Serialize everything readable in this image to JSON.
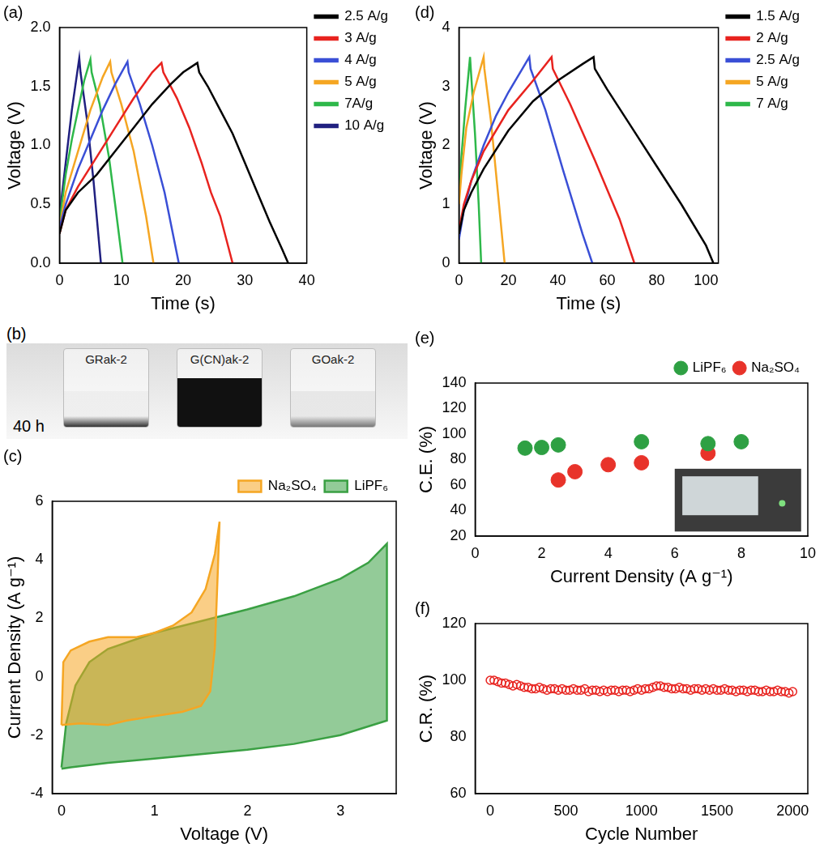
{
  "chart_data": [
    {
      "type": "line",
      "title": "(a)",
      "x_label": "Time (s)",
      "y_label": "Voltage (V)",
      "xlim": [
        0,
        40
      ],
      "xticks": [
        0,
        10,
        20,
        30,
        40
      ],
      "ylim": [
        0,
        2
      ],
      "yticks": [
        {
          "value": 0,
          "label": "0.0"
        },
        0.5,
        {
          "value": 1,
          "label": "1.0"
        },
        1.5,
        {
          "value": 2,
          "label": "2.0"
        }
      ],
      "grid": false,
      "legend": "right",
      "series": [
        {
          "name": "2.5 A/g",
          "color": "#000000",
          "x": [
            0,
            1,
            3,
            6,
            9,
            12,
            15,
            18,
            20,
            22.3,
            22.6,
            24,
            26,
            28,
            30,
            32,
            34,
            36,
            37
          ],
          "values": [
            0.25,
            0.45,
            0.6,
            0.75,
            0.95,
            1.15,
            1.35,
            1.52,
            1.62,
            1.7,
            1.62,
            1.5,
            1.3,
            1.1,
            0.85,
            0.6,
            0.35,
            0.12,
            0
          ]
        },
        {
          "name": "3 A/g",
          "color": "#e8231f",
          "x": [
            0,
            1,
            3,
            6,
            9,
            12,
            15,
            16.5,
            16.8,
            19,
            21,
            23,
            24.5,
            26,
            28
          ],
          "values": [
            0.25,
            0.45,
            0.65,
            0.9,
            1.15,
            1.4,
            1.62,
            1.7,
            1.62,
            1.4,
            1.15,
            0.85,
            0.6,
            0.4,
            0
          ]
        },
        {
          "name": "4 A/g",
          "color": "#3a4fd6",
          "x": [
            0,
            1,
            3,
            5,
            7,
            9,
            11,
            11.2,
            13,
            15,
            17,
            19.3
          ],
          "values": [
            0.3,
            0.5,
            0.8,
            1.05,
            1.3,
            1.52,
            1.71,
            1.62,
            1.35,
            1.0,
            0.6,
            0
          ]
        },
        {
          "name": "5 A/g",
          "color": "#f5a623",
          "x": [
            0,
            1,
            3,
            5,
            7,
            8.2,
            8.4,
            10,
            12,
            14,
            15.2
          ],
          "values": [
            0.3,
            0.6,
            0.95,
            1.3,
            1.58,
            1.71,
            1.62,
            1.35,
            0.95,
            0.4,
            0
          ]
        },
        {
          "name": "7A/g",
          "color": "#2eb84a",
          "x": [
            0,
            1,
            2,
            3,
            4,
            5,
            5.2,
            6.5,
            8,
            9,
            10.2
          ],
          "values": [
            0.35,
            0.75,
            1.05,
            1.3,
            1.55,
            1.73,
            1.62,
            1.35,
            0.9,
            0.5,
            0
          ]
        },
        {
          "name": "10 A/g",
          "color": "#202080",
          "x": [
            0,
            1,
            2,
            3.2,
            3.4,
            4.5,
            5.5,
            6.7
          ],
          "values": [
            0.4,
            0.85,
            1.3,
            1.74,
            1.62,
            1.2,
            0.7,
            0
          ]
        }
      ]
    },
    {
      "type": "line",
      "title": "(d)",
      "x_label": "Time (s)",
      "y_label": "Voltage (V)",
      "xlim": [
        0,
        105
      ],
      "xticks": [
        0,
        20,
        40,
        60,
        80,
        100
      ],
      "ylim": [
        0,
        4
      ],
      "yticks": [
        0,
        1,
        2,
        3,
        4
      ],
      "grid": false,
      "legend": "right",
      "series": [
        {
          "name": "1.5 A/g",
          "color": "#000000",
          "x": [
            0,
            2,
            5,
            10,
            20,
            30,
            40,
            50,
            54.5,
            55,
            60,
            70,
            80,
            90,
            100,
            103
          ],
          "values": [
            0.5,
            0.9,
            1.2,
            1.6,
            2.25,
            2.75,
            3.1,
            3.38,
            3.5,
            3.3,
            2.95,
            2.3,
            1.65,
            1.0,
            0.3,
            0
          ]
        },
        {
          "name": "2 A/g",
          "color": "#e8231f",
          "x": [
            0,
            2,
            5,
            10,
            20,
            30,
            37.5,
            38,
            45,
            55,
            65,
            71
          ],
          "values": [
            0.55,
            1.0,
            1.4,
            1.9,
            2.6,
            3.1,
            3.5,
            3.3,
            2.7,
            1.75,
            0.75,
            0
          ]
        },
        {
          "name": "2.5 A/g",
          "color": "#3a4fd6",
          "x": [
            0,
            2,
            5,
            10,
            15,
            20,
            28.5,
            29,
            35,
            42,
            50,
            54
          ],
          "values": [
            0.4,
            0.9,
            1.4,
            2.0,
            2.5,
            2.9,
            3.5,
            3.3,
            2.6,
            1.6,
            0.5,
            0
          ]
        },
        {
          "name": "5 A/g",
          "color": "#f5a623",
          "x": [
            0,
            1,
            3,
            6,
            10,
            10.3,
            13,
            16,
            18.5
          ],
          "values": [
            1.0,
            1.5,
            2.3,
            2.9,
            3.5,
            3.3,
            2.4,
            1.1,
            0
          ]
        },
        {
          "name": "7 A/g",
          "color": "#2eb84a",
          "x": [
            0,
            1,
            2.5,
            4.5,
            4.8,
            6.5,
            8,
            9
          ],
          "values": [
            1.1,
            1.8,
            2.6,
            3.5,
            3.3,
            2.2,
            1.0,
            0
          ]
        }
      ]
    },
    {
      "type": "area",
      "title": "(c)",
      "x_label": "Voltage (V)",
      "y_label": "Current Density (A g⁻¹)",
      "xlim": [
        -0.1,
        3.6
      ],
      "xticks": [
        0,
        1,
        2,
        3
      ],
      "ylim": [
        -4,
        6
      ],
      "yticks": [
        -4,
        -2,
        0,
        2,
        4,
        6
      ],
      "grid": false,
      "legend": "top",
      "series": [
        {
          "name": "LiPF₆",
          "color": "#3aa043",
          "x": [
            0,
            0.05,
            0.15,
            0.3,
            0.5,
            1,
            1.5,
            2,
            2.5,
            3,
            3.3,
            3.5,
            3.5,
            3,
            2.5,
            2,
            1.5,
            1,
            0.5,
            0.1,
            0
          ],
          "values": [
            -3.1,
            -1.6,
            -0.3,
            0.5,
            0.95,
            1.5,
            1.9,
            2.3,
            2.75,
            3.35,
            3.9,
            4.55,
            -1.5,
            -2.0,
            -2.3,
            -2.5,
            -2.65,
            -2.8,
            -2.95,
            -3.1,
            -3.15
          ]
        },
        {
          "name": "Na₂SO₄",
          "color": "#f5a623",
          "x": [
            0,
            0.02,
            0.1,
            0.3,
            0.5,
            0.8,
            1.0,
            1.2,
            1.4,
            1.55,
            1.65,
            1.7,
            1.68,
            1.65,
            1.6,
            1.5,
            1.3,
            1.0,
            0.7,
            0.5,
            0.2,
            0
          ],
          "values": [
            -1.65,
            0.5,
            0.9,
            1.2,
            1.35,
            1.35,
            1.5,
            1.75,
            2.2,
            3.0,
            4.2,
            5.3,
            3.5,
            1.0,
            -0.5,
            -1.0,
            -1.2,
            -1.35,
            -1.5,
            -1.65,
            -1.6,
            -1.65
          ]
        }
      ]
    },
    {
      "type": "scatter",
      "title": "(e)",
      "x_label": "Current Density (A g⁻¹)",
      "y_label": "C.E. (%)",
      "xlim": [
        0,
        10
      ],
      "xticks": [
        0,
        2,
        4,
        6,
        8,
        10
      ],
      "ylim": [
        20,
        140
      ],
      "yticks": [
        20,
        40,
        60,
        80,
        100,
        120,
        140
      ],
      "grid": false,
      "legend": "top",
      "series": [
        {
          "name": "LiPF₆",
          "color": "#2ea043",
          "marker": "circle",
          "x": [
            1.5,
            2,
            2.5,
            5,
            7,
            8
          ],
          "values": [
            89,
            89.5,
            91.5,
            94,
            92.5,
            94
          ]
        },
        {
          "name": "Na₂SO₄",
          "color": "#e8332a",
          "marker": "circle",
          "x": [
            2.5,
            3,
            4,
            5,
            7
          ],
          "values": [
            64,
            70.5,
            76,
            77.5,
            85
          ]
        }
      ]
    },
    {
      "type": "scatter",
      "title": "(f)",
      "x_label": "Cycle Number",
      "y_label": "C.R. (%)",
      "xlim": [
        -100,
        2100
      ],
      "xticks": [
        0,
        500,
        1000,
        1500,
        2000
      ],
      "ylim": [
        60,
        120
      ],
      "yticks": [
        60,
        80,
        100,
        120
      ],
      "grid": false,
      "series": [
        {
          "color": "#e8231f",
          "marker": "open_circle",
          "x": [
            0,
            25,
            50,
            75,
            100,
            125,
            150,
            175,
            200,
            225,
            250,
            275,
            300,
            325,
            350,
            375,
            400,
            425,
            450,
            475,
            500,
            525,
            550,
            575,
            600,
            625,
            650,
            675,
            700,
            725,
            750,
            775,
            800,
            825,
            850,
            875,
            900,
            925,
            950,
            975,
            1000,
            1025,
            1050,
            1075,
            1100,
            1125,
            1150,
            1175,
            1200,
            1225,
            1250,
            1275,
            1300,
            1325,
            1350,
            1375,
            1400,
            1425,
            1450,
            1475,
            1500,
            1525,
            1550,
            1575,
            1600,
            1625,
            1650,
            1675,
            1700,
            1725,
            1750,
            1775,
            1800,
            1825,
            1850,
            1875,
            1900,
            1925,
            1950,
            1975,
            2000
          ],
          "values": [
            100,
            100,
            99.5,
            99,
            99,
            98.5,
            98,
            98.5,
            98,
            97.5,
            97.5,
            97,
            97,
            97.5,
            97,
            96.5,
            97,
            97,
            96.5,
            97,
            96.5,
            96.5,
            97,
            96.5,
            96.5,
            97,
            96,
            96.5,
            96.5,
            96,
            96.5,
            96,
            96.5,
            96.5,
            96,
            96.5,
            96.5,
            96,
            96.5,
            97,
            96.5,
            97,
            97,
            97.5,
            98,
            98,
            97.5,
            97.5,
            97,
            97,
            97.5,
            97,
            97,
            96.5,
            97,
            97,
            96.5,
            97,
            96.5,
            97,
            96.5,
            96.5,
            97,
            96.5,
            96.5,
            96,
            96.5,
            96.5,
            96,
            96.5,
            96.5,
            96,
            96,
            96.5,
            96,
            96,
            96.5,
            96,
            96,
            95.5,
            96
          ]
        }
      ]
    }
  ],
  "photo_panel": {
    "label": "(b)",
    "vials": [
      "GRak-2",
      "G(CN)ak-2",
      "GOak-2"
    ],
    "caption": "40 h"
  }
}
